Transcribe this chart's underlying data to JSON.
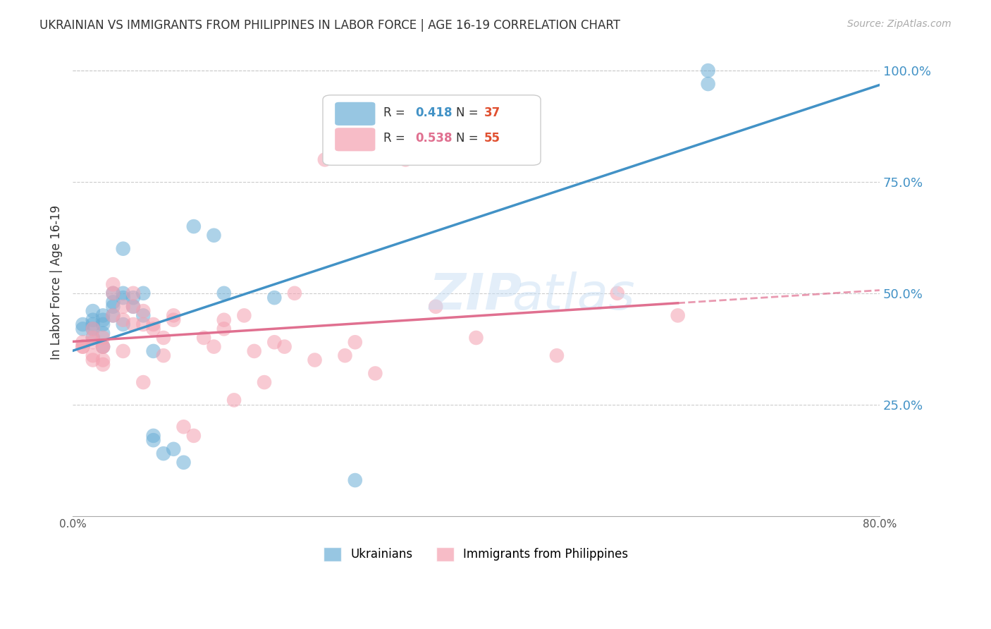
{
  "title": "UKRAINIAN VS IMMIGRANTS FROM PHILIPPINES IN LABOR FORCE | AGE 16-19 CORRELATION CHART",
  "source": "Source: ZipAtlas.com",
  "xlabel_bottom": "",
  "ylabel": "In Labor Force | Age 16-19",
  "xmin": 0.0,
  "xmax": 0.8,
  "ymin": 0.0,
  "ymax": 1.05,
  "xticks": [
    0.0,
    0.1,
    0.2,
    0.3,
    0.4,
    0.5,
    0.6,
    0.7,
    0.8
  ],
  "xticklabels": [
    "0.0%",
    "",
    "",
    "",
    "",
    "",
    "",
    "",
    "80.0%"
  ],
  "yticks_right": [
    0.25,
    0.5,
    0.75,
    1.0
  ],
  "ytick_labels_right": [
    "25.0%",
    "50.0%",
    "75.0%",
    "100.0%"
  ],
  "legend_r1": "R = 0.418",
  "legend_n1": "N = 37",
  "legend_r2": "R = 0.538",
  "legend_n2": "N = 55",
  "color_blue": "#6baed6",
  "color_pink": "#f4a0b0",
  "color_blue_line": "#4292c6",
  "color_pink_line": "#e07090",
  "color_title": "#333333",
  "color_right_axis": "#4292c6",
  "watermark": "ZIPatlas",
  "ukrainian_x": [
    0.01,
    0.01,
    0.02,
    0.02,
    0.02,
    0.02,
    0.02,
    0.03,
    0.03,
    0.03,
    0.03,
    0.03,
    0.04,
    0.04,
    0.04,
    0.04,
    0.05,
    0.05,
    0.05,
    0.05,
    0.06,
    0.06,
    0.07,
    0.07,
    0.08,
    0.08,
    0.08,
    0.09,
    0.1,
    0.11,
    0.12,
    0.14,
    0.15,
    0.2,
    0.28,
    0.63,
    0.63
  ],
  "ukrainian_y": [
    0.43,
    0.42,
    0.44,
    0.43,
    0.46,
    0.4,
    0.42,
    0.45,
    0.44,
    0.43,
    0.41,
    0.38,
    0.5,
    0.47,
    0.48,
    0.45,
    0.49,
    0.5,
    0.6,
    0.43,
    0.47,
    0.49,
    0.45,
    0.5,
    0.37,
    0.18,
    0.17,
    0.14,
    0.15,
    0.12,
    0.65,
    0.63,
    0.5,
    0.49,
    0.08,
    1.0,
    0.97
  ],
  "philippines_x": [
    0.01,
    0.01,
    0.01,
    0.02,
    0.02,
    0.02,
    0.02,
    0.02,
    0.03,
    0.03,
    0.03,
    0.03,
    0.03,
    0.04,
    0.04,
    0.04,
    0.05,
    0.05,
    0.05,
    0.06,
    0.06,
    0.06,
    0.07,
    0.07,
    0.07,
    0.08,
    0.08,
    0.09,
    0.09,
    0.1,
    0.1,
    0.11,
    0.12,
    0.13,
    0.14,
    0.15,
    0.15,
    0.16,
    0.17,
    0.18,
    0.19,
    0.2,
    0.21,
    0.22,
    0.24,
    0.25,
    0.27,
    0.28,
    0.3,
    0.33,
    0.36,
    0.4,
    0.48,
    0.54,
    0.6
  ],
  "philippines_y": [
    0.38,
    0.39,
    0.38,
    0.42,
    0.4,
    0.39,
    0.36,
    0.35,
    0.38,
    0.35,
    0.34,
    0.4,
    0.38,
    0.5,
    0.52,
    0.45,
    0.47,
    0.44,
    0.37,
    0.5,
    0.47,
    0.43,
    0.46,
    0.43,
    0.3,
    0.43,
    0.42,
    0.4,
    0.36,
    0.45,
    0.44,
    0.2,
    0.18,
    0.4,
    0.38,
    0.44,
    0.42,
    0.26,
    0.45,
    0.37,
    0.3,
    0.39,
    0.38,
    0.5,
    0.35,
    0.8,
    0.36,
    0.39,
    0.32,
    0.8,
    0.47,
    0.4,
    0.36,
    0.5,
    0.45
  ]
}
